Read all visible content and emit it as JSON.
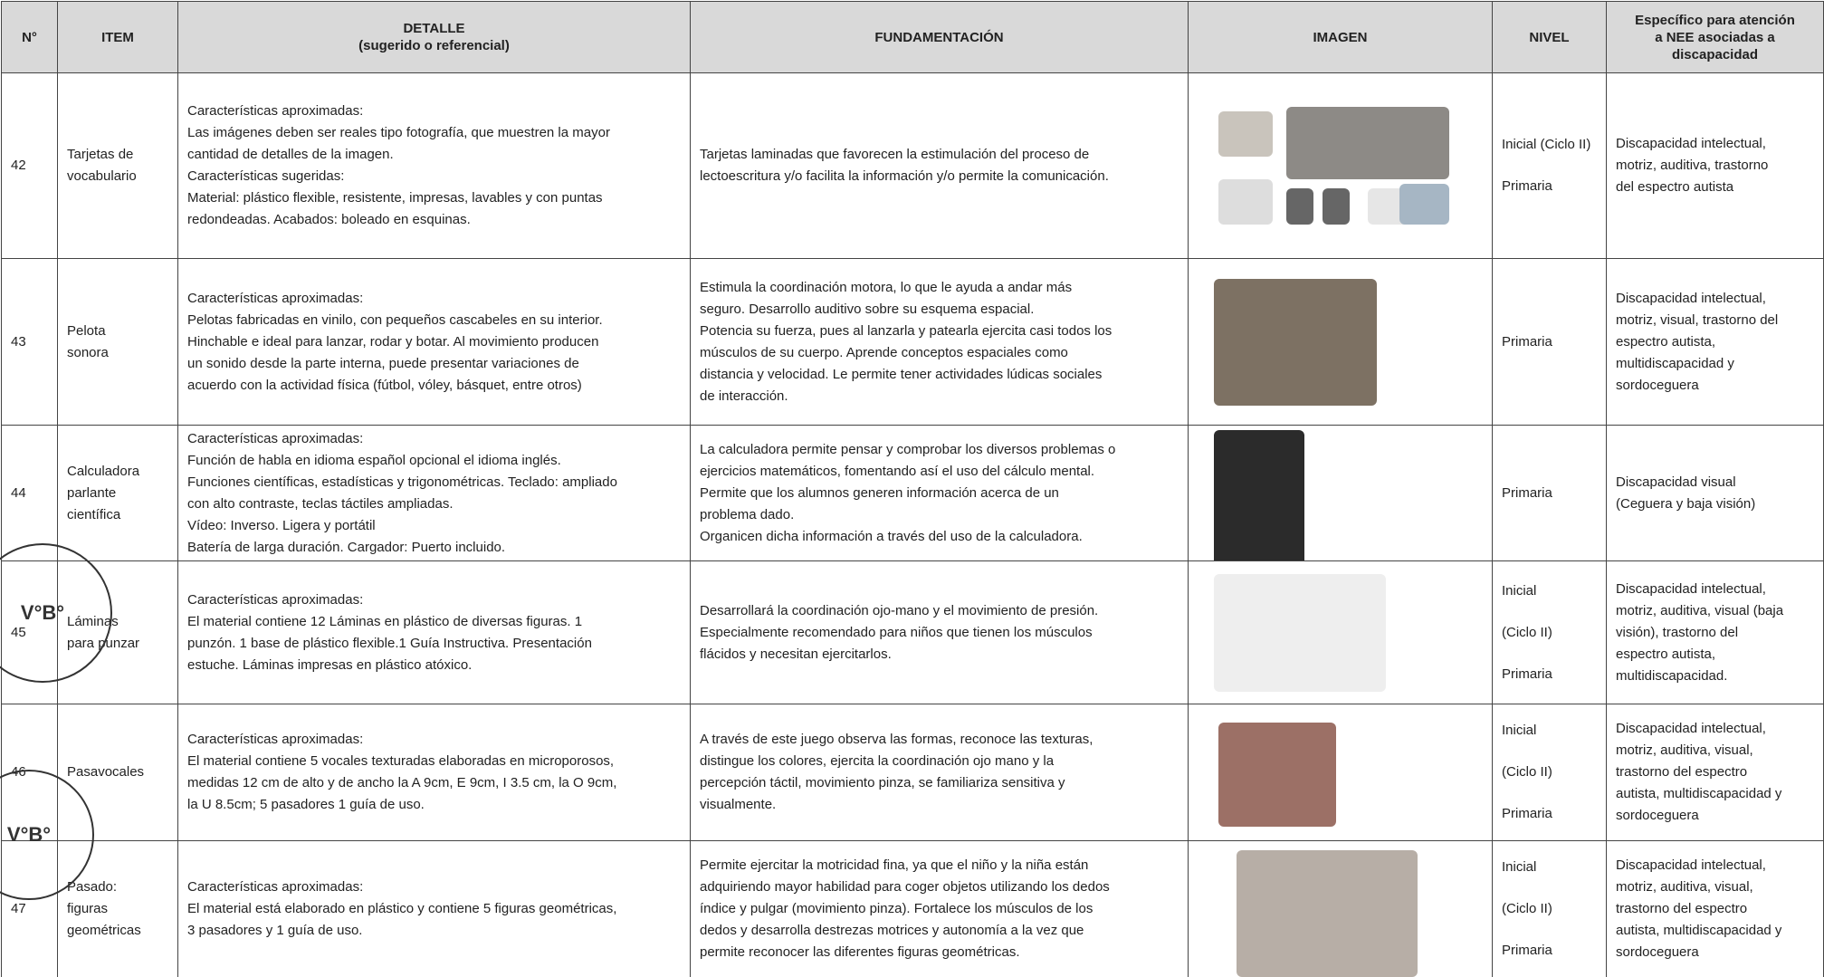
{
  "header": [
    "N°",
    "ITEM",
    [
      "DETALLE",
      "(sugerido o referencial)"
    ],
    "FUNDAMENTACIÓN",
    "IMAGEN",
    "NIVEL",
    [
      "Específico para atención",
      "a NEE asociadas a",
      "discapacidad"
    ]
  ],
  "rows": [
    {
      "n": "42",
      "item": [
        "Tarjetas de",
        "vocabulario"
      ],
      "detalle": [
        "Características aproximadas:",
        "Las imágenes deben ser reales tipo fotografía, que muestren la mayor",
        "cantidad de detalles de la imagen.",
        "Características sugeridas:",
        "Material: plástico flexible, resistente, impresas, lavables y con puntas",
        "redondeadas. Acabados: boleado en esquinas."
      ],
      "fundamentacion": [
        "Tarjetas laminadas que favorecen la estimulación del proceso de",
        "lectoescritura y/o facilita la información y/o permite la comunicación."
      ],
      "nivel": [
        "Inicial (Ciclo II)",
        "Primaria"
      ],
      "especifico": [
        "Discapacidad intelectual,",
        "motriz, auditiva, trastorno",
        "del espectro autista"
      ]
    },
    {
      "n": "43",
      "item": [
        "Pelota",
        "sonora"
      ],
      "detalle": [
        "Características aproximadas:",
        "Pelotas fabricadas en vinilo, con pequeños cascabeles en su interior.",
        "Hinchable e ideal para lanzar, rodar y botar. Al movimiento producen",
        "un sonido desde la parte interna, puede presentar variaciones de",
        "acuerdo con la actividad física (fútbol, vóley, básquet, entre otros)"
      ],
      "fundamentacion": [
        "Estimula la coordinación motora, lo que le ayuda a andar más",
        "seguro. Desarrollo auditivo sobre su esquema espacial.",
        "Potencia su fuerza, pues al lanzarla y patearla ejercita casi todos los",
        "músculos de su cuerpo. Aprende conceptos espaciales como",
        "distancia y velocidad. Le permite tener actividades lúdicas sociales",
        "de interacción."
      ],
      "nivel": [
        "Primaria"
      ],
      "especifico": [
        "Discapacidad intelectual,",
        "motriz, visual, trastorno del",
        "espectro autista,",
        "multidiscapacidad y",
        "sordoceguera"
      ]
    },
    {
      "n": "44",
      "item": [
        "Calculadora",
        "parlante",
        "científica"
      ],
      "detalle": [
        "Características aproximadas:",
        "Función de habla en idioma español opcional el idioma inglés.",
        "Funciones científicas, estadísticas y trigonométricas. Teclado: ampliado",
        "con alto contraste, teclas táctiles ampliadas.",
        "Vídeo: Inverso. Ligera y portátil",
        "Batería de larga duración. Cargador: Puerto incluido."
      ],
      "fundamentacion": [
        "La calculadora permite pensar y comprobar los diversos problemas o",
        "ejercicios matemáticos, fomentando así el uso del cálculo mental.",
        "Permite que los alumnos generen información acerca de un",
        "problema dado.",
        "Organicen dicha información a través del uso de la calculadora."
      ],
      "nivel": [
        "Primaria"
      ],
      "especifico": [
        "Discapacidad visual",
        "(Ceguera y baja visión)"
      ]
    },
    {
      "n": "45",
      "item": [
        "Láminas",
        "para punzar"
      ],
      "detalle": [
        "Características aproximadas:",
        "El material contiene 12 Láminas en plástico de diversas figuras. 1",
        "punzón. 1 base de plástico flexible.1 Guía Instructiva. Presentación",
        "estuche. Láminas impresas en plástico atóxico."
      ],
      "fundamentacion": [
        "Desarrollará la coordinación ojo-mano y el movimiento de presión.",
        "Especialmente recomendado para niños que tienen los músculos",
        "flácidos y necesitan ejercitarlos."
      ],
      "nivel": [
        "Inicial",
        "(Ciclo II)",
        "Primaria"
      ],
      "especifico": [
        "Discapacidad intelectual,",
        "motriz, auditiva, visual (baja",
        "visión), trastorno del",
        "espectro autista,",
        "multidiscapacidad."
      ]
    },
    {
      "n": "46",
      "item": [
        "Pasavocales"
      ],
      "detalle": [
        "Características aproximadas:",
        "El material contiene 5 vocales texturadas elaboradas en microporosos,",
        "medidas 12 cm de alto y de ancho la A 9cm, E 9cm, I 3.5 cm, la O 9cm,",
        "la U 8.5cm; 5 pasadores   1 guía de uso."
      ],
      "fundamentacion": [
        "A través de este juego observa las formas, reconoce las texturas,",
        "distingue los colores, ejercita la coordinación ojo mano y la",
        "percepción táctil, movimiento pinza, se familiariza sensitiva y",
        "visualmente."
      ],
      "nivel": [
        "Inicial",
        "(Ciclo II)",
        "Primaria"
      ],
      "especifico": [
        "Discapacidad intelectual,",
        "motriz, auditiva, visual,",
        "trastorno del espectro",
        "autista, multidiscapacidad y",
        "sordoceguera"
      ]
    },
    {
      "n": "47",
      "item": [
        "Pasado:",
        "figuras",
        "geométricas"
      ],
      "detalle": [
        "Características aproximadas:",
        "El material está elaborado en plástico y contiene 5 figuras geométricas,",
        "3 pasadores y 1 guía de uso."
      ],
      "fundamentacion": [
        "Permite ejercitar la motricidad fina, ya que el niño y la niña están",
        "adquiriendo mayor habilidad para coger objetos utilizando los dedos",
        "índice y pulgar (movimiento pinza). Fortalece los músculos de los",
        "dedos y desarrolla destrezas motrices y autonomía a la vez que",
        "permite reconocer las diferentes figuras geométricas."
      ],
      "nivel": [
        "Inicial",
        "(Ciclo II)",
        "Primaria"
      ],
      "especifico": [
        "Discapacidad intelectual,",
        "motriz, auditiva, visual,",
        "trastorno del espectro",
        "autista, multidiscapacidad y",
        "sordoceguera"
      ]
    }
  ],
  "stamps": [
    "V°B°",
    "V°B°"
  ]
}
